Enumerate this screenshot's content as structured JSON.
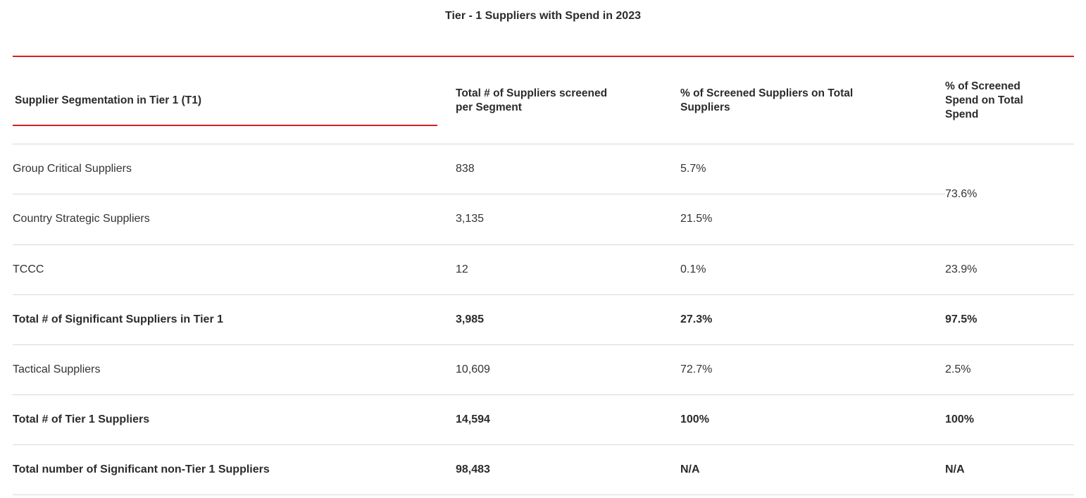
{
  "title": "Tier - 1 Suppliers with Spend in 2023",
  "headers": {
    "segment": "Supplier Segmentation in Tier 1 (T1)",
    "total_screened": "Total # of Suppliers screened per Segment",
    "pct_suppliers": "% of Screened Suppliers on Total Suppliers",
    "pct_spend": "% of Screened Spend on Total Spend"
  },
  "group": {
    "merged_spend": "73.6%",
    "rows": [
      {
        "segment": "Group Critical Suppliers",
        "total": "838",
        "pct_suppliers": "5.7%"
      },
      {
        "segment": "Country Strategic Suppliers",
        "total": "3,135",
        "pct_suppliers": "21.5%"
      }
    ]
  },
  "rows": [
    {
      "segment": "TCCC",
      "total": "12",
      "pct_suppliers": "0.1%",
      "pct_spend": "23.9%",
      "bold": false
    },
    {
      "segment": "Total # of Significant Suppliers in Tier 1",
      "total": "3,985",
      "pct_suppliers": "27.3%",
      "pct_spend": "97.5%",
      "bold": true
    },
    {
      "segment": "Tactical Suppliers",
      "total": "10,609",
      "pct_suppliers": "72.7%",
      "pct_spend": "2.5%",
      "bold": false
    },
    {
      "segment": "Total # of Tier 1 Suppliers",
      "total": "14,594",
      "pct_suppliers": "100%",
      "pct_spend": "100%",
      "bold": true
    },
    {
      "segment": "Total number of Significant non-Tier 1 Suppliers",
      "total": "98,483",
      "pct_suppliers": "N/A",
      "pct_spend": "N/A",
      "bold": true
    }
  ],
  "colors": {
    "accent": "#d81e22",
    "rule": "#d9d9d9",
    "text": "#333333"
  }
}
